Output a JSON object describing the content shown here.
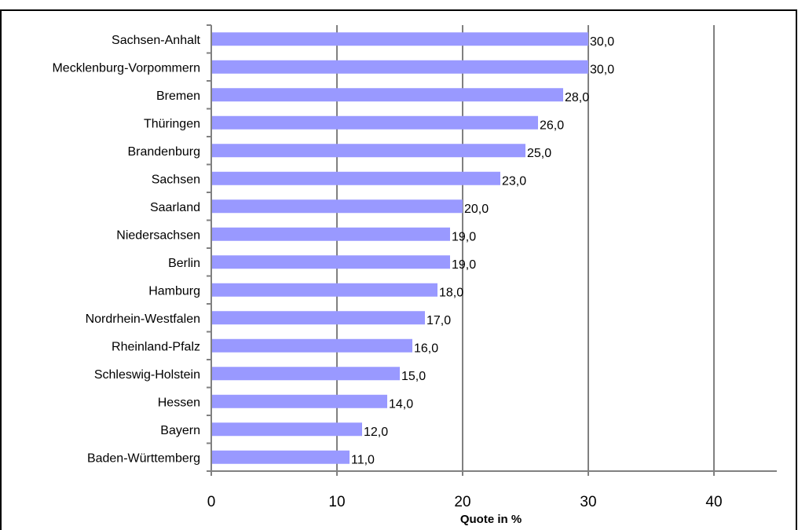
{
  "chart_data": {
    "type": "bar",
    "orientation": "horizontal",
    "title": "",
    "xlabel": "Quote in %",
    "ylabel": "",
    "xlim": [
      0,
      45
    ],
    "x_ticks": [
      0,
      10,
      20,
      30,
      40
    ],
    "x_tick_labels": [
      "0",
      "10",
      "20",
      "30",
      "40"
    ],
    "grid": "vertical",
    "legend": "none",
    "categories": [
      "Sachsen-Anhalt",
      "Mecklenburg-Vorpommern",
      "Bremen",
      "Thüringen",
      "Brandenburg",
      "Sachsen",
      "Saarland",
      "Niedersachsen",
      "Berlin",
      "Hamburg",
      "Nordrhein-Westfalen",
      "Rheinland-Pfalz",
      "Schleswig-Holstein",
      "Hessen",
      "Bayern",
      "Baden-Württemberg"
    ],
    "values": [
      30,
      30,
      28,
      26,
      25,
      23,
      20,
      19,
      19,
      18,
      17,
      16,
      15,
      14,
      12,
      11
    ],
    "data_labels": [
      "30,0",
      "30,0",
      "28,0",
      "26,0",
      "25,0",
      "23,0",
      "20,0",
      "19,0",
      "19,0",
      "18,0",
      "17,0",
      "16,0",
      "15,0",
      "14,0",
      "12,0",
      "11,0"
    ],
    "colors": {
      "bar": "#9999ff",
      "grid": "#808080",
      "axis": "#808080",
      "frame": "#000000"
    }
  }
}
